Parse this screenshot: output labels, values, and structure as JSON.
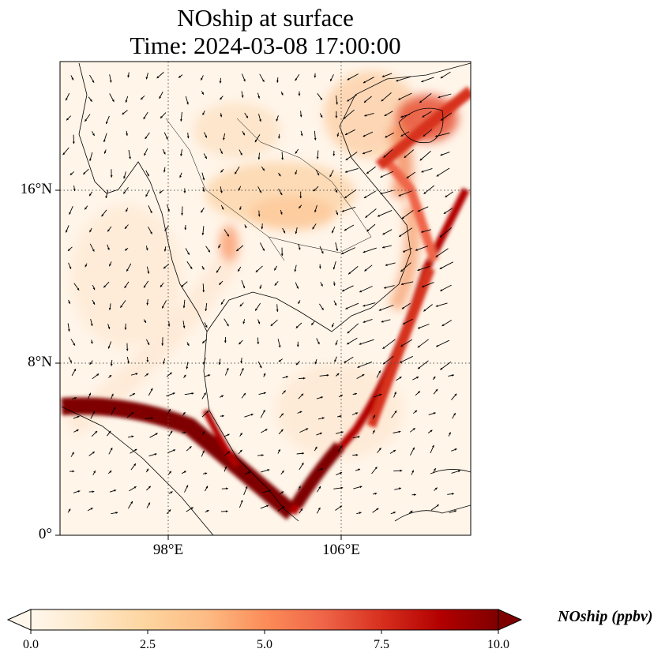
{
  "map": {
    "title_line1": "NOship at surface",
    "title_line2": "Time: 2024-03-08 17:00:00",
    "lat_labels": [
      "16°N",
      "8°N",
      "0°"
    ],
    "lon_labels": [
      "98°E",
      "106°E"
    ],
    "lon_range": [
      94,
      113
    ],
    "lat_range": [
      0,
      22
    ],
    "gridline_style": "dotted"
  },
  "colorbar": {
    "label": "NOship (ppbv)",
    "ticks": [
      "0.0",
      "2.5",
      "5.0",
      "7.5",
      "10.0"
    ],
    "min": 0,
    "max": 10,
    "extend": "both",
    "colormap": "OrRd",
    "colors": [
      "#fff7ec",
      "#fee8c8",
      "#fdd49e",
      "#fdbb84",
      "#fc8d59",
      "#ef6548",
      "#d7301f",
      "#b30000",
      "#7f0000"
    ]
  }
}
